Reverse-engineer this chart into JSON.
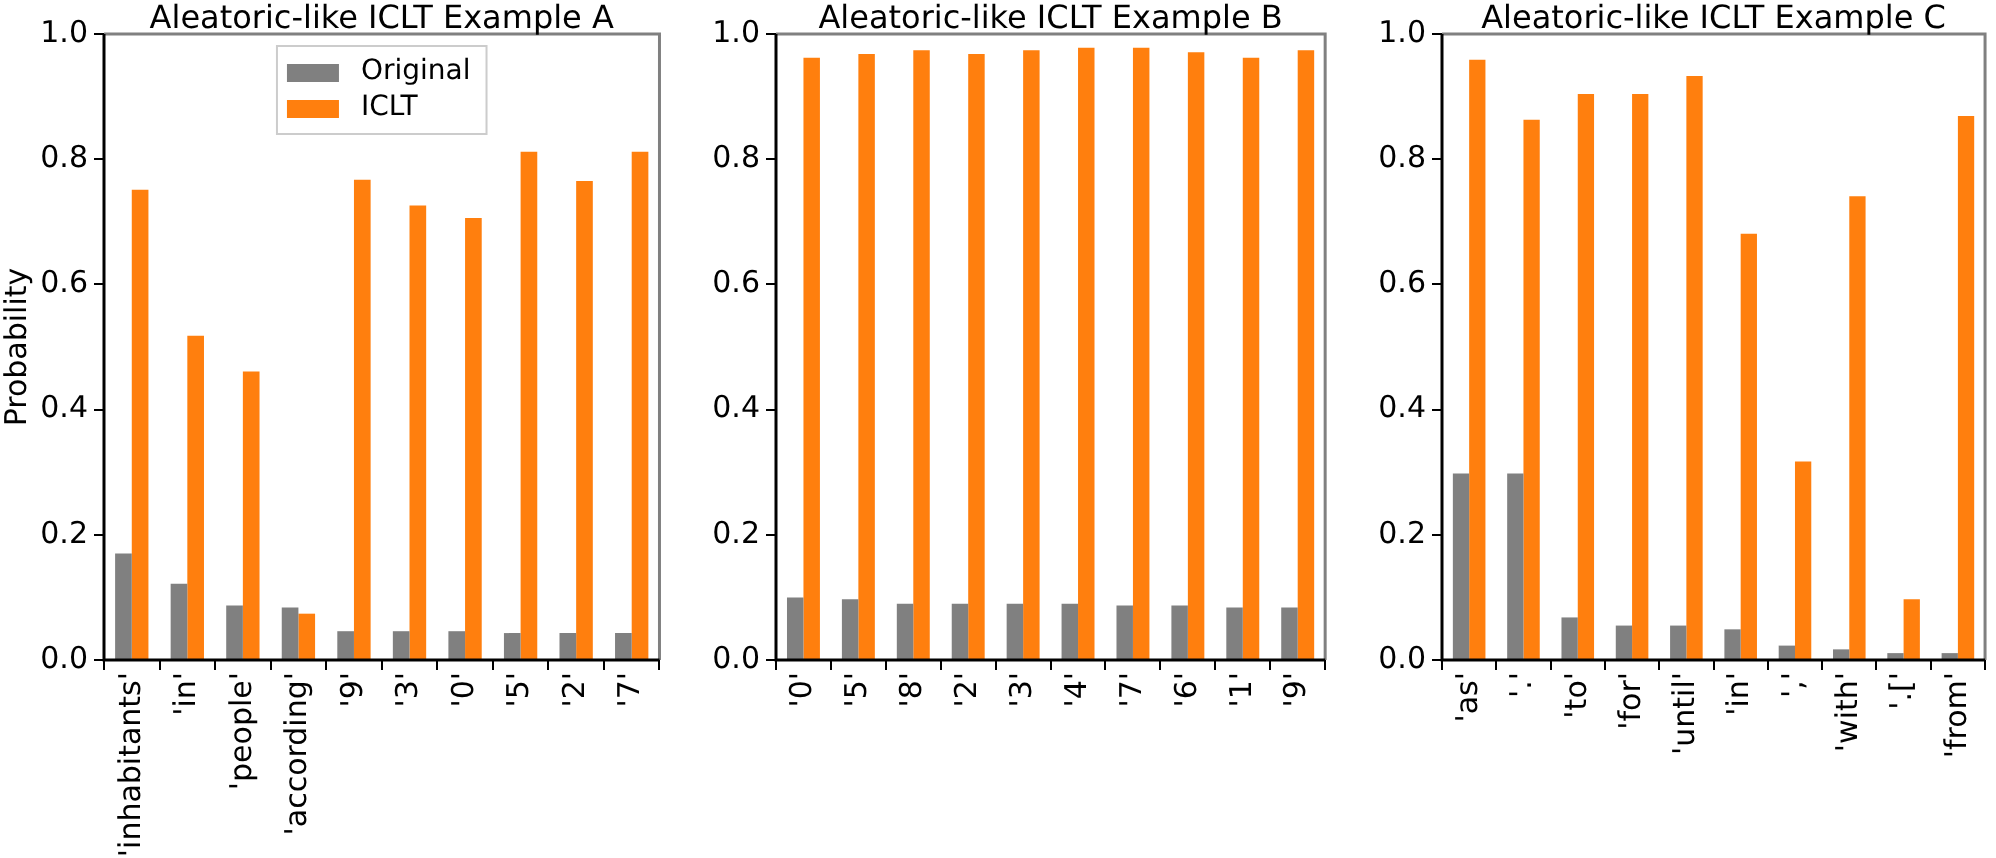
{
  "chart_data": [
    {
      "type": "bar",
      "title": "Aleatoric-like ICLT Example A",
      "ylabel": "Probability",
      "categories": [
        "'inhabitants'",
        "'in'",
        "'people'",
        "'according'",
        "'9'",
        "'3'",
        "'0'",
        "'5'",
        "'2'",
        "'7'"
      ],
      "series": [
        {
          "name": "Original",
          "color": "#808080",
          "values": [
            0.17,
            0.122,
            0.087,
            0.084,
            0.046,
            0.046,
            0.046,
            0.043,
            0.043,
            0.043
          ]
        },
        {
          "name": "ICLT",
          "color": "#ff7f0e",
          "values": [
            0.751,
            0.518,
            0.461,
            0.074,
            0.767,
            0.726,
            0.706,
            0.812,
            0.765,
            0.812
          ]
        }
      ],
      "ylim": [
        0,
        1
      ],
      "yticks": [
        {
          "value": 0,
          "label": "0.0"
        },
        {
          "value": 0.2,
          "label": "0.2"
        },
        {
          "value": 0.4,
          "label": "0.4"
        },
        {
          "value": 0.6,
          "label": "0.6"
        },
        {
          "value": 0.8,
          "label": "0.8"
        },
        {
          "value": 1,
          "label": "1.0"
        }
      ],
      "grid": false,
      "legend": "top"
    },
    {
      "type": "bar",
      "title": "Aleatoric-like ICLT Example B",
      "categories": [
        "'0'",
        "'5'",
        "'8'",
        "'2'",
        "'3'",
        "'4'",
        "'7'",
        "'6'",
        "'1'",
        "'9'"
      ],
      "series": [
        {
          "color": "#808080",
          "values": [
            0.1,
            0.097,
            0.09,
            0.09,
            0.09,
            0.09,
            0.087,
            0.087,
            0.084,
            0.084
          ]
        },
        {
          "color": "#ff7f0e",
          "values": [
            0.962,
            0.968,
            0.974,
            0.968,
            0.974,
            0.978,
            0.978,
            0.971,
            0.962,
            0.974
          ]
        }
      ],
      "ylim": [
        0,
        1
      ],
      "yticks": [
        {
          "value": 0,
          "label": "0.0"
        },
        {
          "value": 0.2,
          "label": "0.2"
        },
        {
          "value": 0.4,
          "label": "0.4"
        },
        {
          "value": 0.6,
          "label": "0.6"
        },
        {
          "value": 0.8,
          "label": "0.8"
        },
        {
          "value": 1,
          "label": "1.0"
        }
      ],
      "grid": false
    },
    {
      "type": "bar",
      "title": "Aleatoric-like ICLT Example C",
      "categories": [
        "'as'",
        "'.'",
        "'to'",
        "'for'",
        "'until'",
        "'in'",
        "','",
        "'with'",
        "'.['",
        "'from'"
      ],
      "series": [
        {
          "color": "#808080",
          "values": [
            0.298,
            0.298,
            0.068,
            0.055,
            0.055,
            0.049,
            0.023,
            0.017,
            0.011,
            0.011
          ]
        },
        {
          "color": "#ff7f0e",
          "values": [
            0.959,
            0.863,
            0.904,
            0.904,
            0.933,
            0.681,
            0.317,
            0.741,
            0.097,
            0.869
          ]
        }
      ],
      "ylim": [
        0,
        1
      ],
      "yticks": [
        {
          "value": 0,
          "label": "0.0"
        },
        {
          "value": 0.2,
          "label": "0.2"
        },
        {
          "value": 0.4,
          "label": "0.4"
        },
        {
          "value": 0.6,
          "label": "0.6"
        },
        {
          "value": 0.8,
          "label": "0.8"
        },
        {
          "value": 1,
          "label": "1.0"
        }
      ],
      "grid": false
    }
  ]
}
